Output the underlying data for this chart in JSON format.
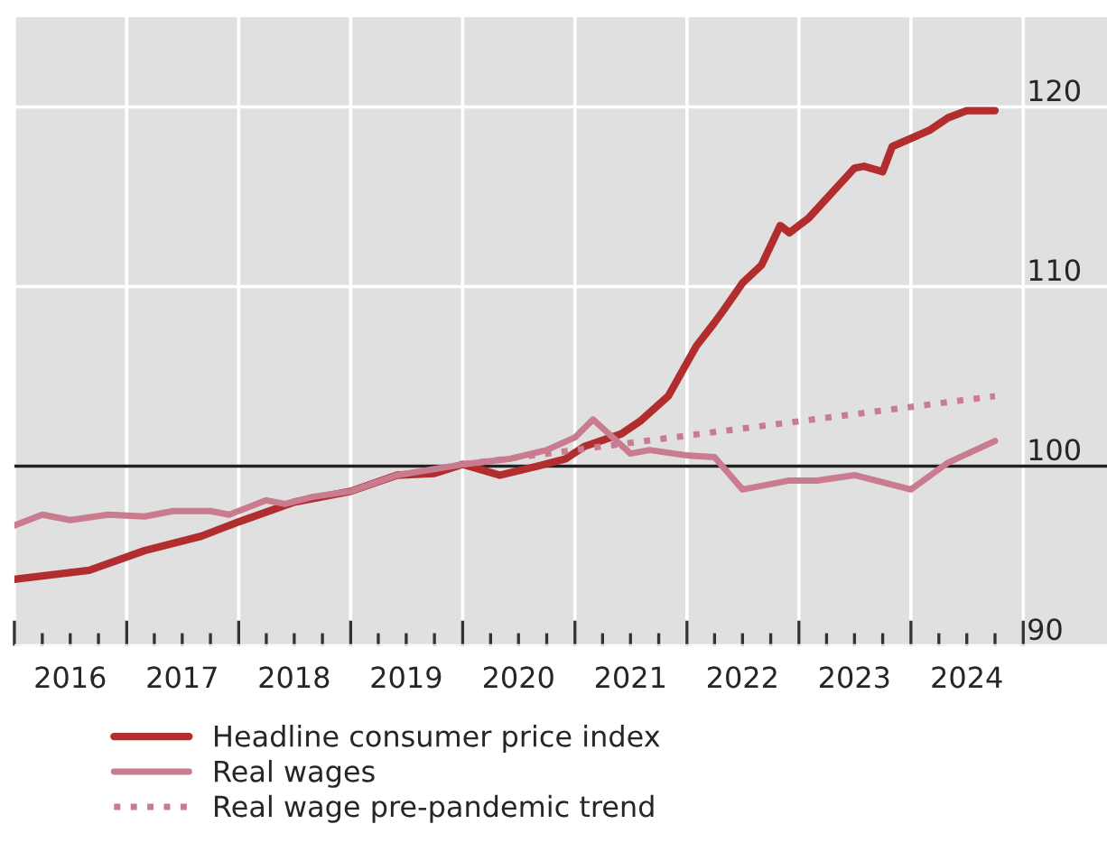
{
  "chart_data": {
    "type": "line",
    "series": [
      {
        "name": "Headline consumer price index",
        "color": "#b22d2d",
        "line_style": "solid",
        "x": [
          "2016-01",
          "2016-09",
          "2017-03",
          "2017-09",
          "2018-01",
          "2018-07",
          "2019-01",
          "2019-06",
          "2019-10",
          "2020-01",
          "2020-05",
          "2020-09",
          "2020-12",
          "2021-02",
          "2021-06",
          "2021-08",
          "2021-11",
          "2022-02",
          "2022-04",
          "2022-05",
          "2022-07",
          "2022-09",
          "2022-11",
          "2022-12",
          "2023-02",
          "2023-07",
          "2023-08",
          "2023-10",
          "2023-11",
          "2024-03",
          "2024-05",
          "2024-07",
          "2024-10"
        ],
        "values": [
          93.7,
          94.2,
          95.3,
          96.1,
          96.9,
          98.0,
          98.6,
          99.5,
          99.6,
          100.1,
          99.5,
          100.0,
          100.4,
          101.1,
          101.8,
          102.5,
          103.9,
          106.7,
          108.0,
          108.7,
          110.2,
          111.2,
          113.4,
          113.0,
          113.8,
          116.6,
          116.7,
          116.4,
          117.8,
          118.7,
          119.4,
          119.8,
          119.8
        ]
      },
      {
        "name": "Real wages",
        "color": "#c97b8f",
        "line_style": "solid",
        "x": [
          "2016-01",
          "2016-04",
          "2016-07",
          "2016-11",
          "2017-03",
          "2017-06",
          "2017-10",
          "2017-12",
          "2018-04",
          "2018-06",
          "2018-09",
          "2019-01",
          "2019-06",
          "2020-01",
          "2020-06",
          "2020-10",
          "2021-01",
          "2021-03",
          "2021-07",
          "2021-09",
          "2022-01",
          "2022-04",
          "2022-07",
          "2022-09",
          "2022-12",
          "2023-03",
          "2023-07",
          "2023-10",
          "2024-01",
          "2024-05",
          "2024-10"
        ],
        "values": [
          96.7,
          97.3,
          97.0,
          97.3,
          97.2,
          97.5,
          97.5,
          97.3,
          98.1,
          97.9,
          98.3,
          98.6,
          99.5,
          100.1,
          100.4,
          100.9,
          101.6,
          102.6,
          100.7,
          100.9,
          100.6,
          100.5,
          98.7,
          98.9,
          99.2,
          99.2,
          99.5,
          99.1,
          98.7,
          100.2,
          101.4
        ]
      },
      {
        "name": "Real wage pre-pandemic trend",
        "color": "#c97b8f",
        "line_style": "dotted",
        "x": [
          "2020-01",
          "2024-10"
        ],
        "values": [
          100.1,
          103.9
        ]
      }
    ],
    "xlim": [
      "2016-01",
      "2025-10"
    ],
    "xticks": [
      {
        "value": "2016-01",
        "label": null
      },
      {
        "value": "2016-04",
        "label": null
      },
      {
        "value": "2016-07",
        "label": "2016"
      },
      {
        "value": "2016-10",
        "label": null
      },
      {
        "value": "2017-01",
        "label": null
      },
      {
        "value": "2017-04",
        "label": null
      },
      {
        "value": "2017-07",
        "label": "2017"
      },
      {
        "value": "2017-10",
        "label": null
      },
      {
        "value": "2018-01",
        "label": null
      },
      {
        "value": "2018-04",
        "label": null
      },
      {
        "value": "2018-07",
        "label": "2018"
      },
      {
        "value": "2018-10",
        "label": null
      },
      {
        "value": "2019-01",
        "label": null
      },
      {
        "value": "2019-04",
        "label": null
      },
      {
        "value": "2019-07",
        "label": "2019"
      },
      {
        "value": "2019-10",
        "label": null
      },
      {
        "value": "2020-01",
        "label": null
      },
      {
        "value": "2020-04",
        "label": null
      },
      {
        "value": "2020-07",
        "label": "2020"
      },
      {
        "value": "2020-10",
        "label": null
      },
      {
        "value": "2021-01",
        "label": null
      },
      {
        "value": "2021-04",
        "label": null
      },
      {
        "value": "2021-07",
        "label": "2021"
      },
      {
        "value": "2021-10",
        "label": null
      },
      {
        "value": "2022-01",
        "label": null
      },
      {
        "value": "2022-04",
        "label": null
      },
      {
        "value": "2022-07",
        "label": "2022"
      },
      {
        "value": "2022-10",
        "label": null
      },
      {
        "value": "2023-01",
        "label": null
      },
      {
        "value": "2023-04",
        "label": null
      },
      {
        "value": "2023-07",
        "label": "2023"
      },
      {
        "value": "2023-10",
        "label": null
      },
      {
        "value": "2024-01",
        "label": null
      },
      {
        "value": "2024-04",
        "label": null
      },
      {
        "value": "2024-07",
        "label": "2024"
      },
      {
        "value": "2024-10",
        "label": null
      },
      {
        "value": "2025-01",
        "label": null
      }
    ],
    "ylim": [
      90,
      125
    ],
    "yticks": [
      90,
      100,
      110,
      120
    ],
    "ref_lines": [
      {
        "axis": "y",
        "value": 100,
        "color": "#222222"
      }
    ],
    "grid": true,
    "legend": "bottom left"
  }
}
